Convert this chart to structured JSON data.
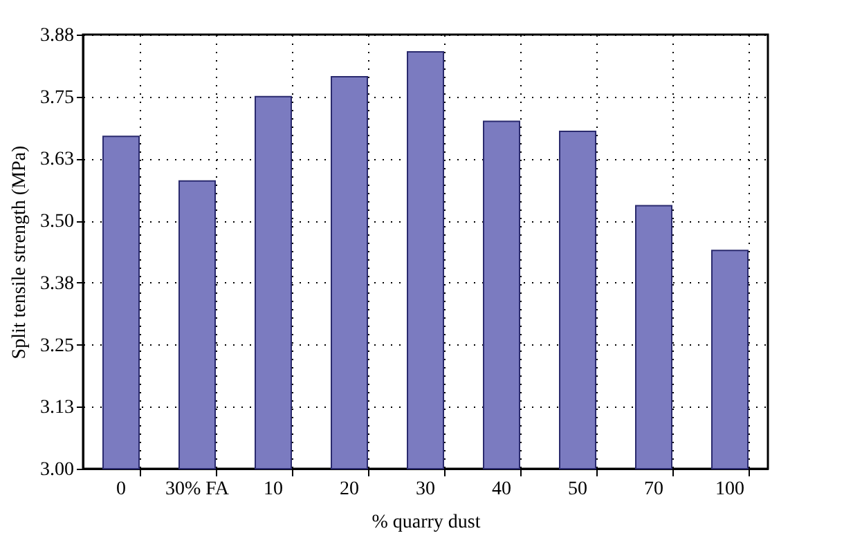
{
  "chart_data": {
    "type": "bar",
    "xlabel": "% quarry dust",
    "ylabel": "Split tensile strength (MPa)",
    "categories": [
      "0",
      "30% FA",
      "10",
      "20",
      "30",
      "40",
      "50",
      "70",
      "100"
    ],
    "values": [
      3.67,
      3.58,
      3.75,
      3.79,
      3.84,
      3.7,
      3.68,
      3.53,
      3.44
    ],
    "color": "#7b7bc0",
    "ylim": [
      3.0,
      3.875
    ],
    "yticks": [
      {
        "value": 3.0,
        "label": "3.00"
      },
      {
        "value": 3.125,
        "label": "3.13"
      },
      {
        "value": 3.25,
        "label": "3.25"
      },
      {
        "value": 3.375,
        "label": "3.38"
      },
      {
        "value": 3.5,
        "label": "3.50"
      },
      {
        "value": 3.625,
        "label": "3.63"
      },
      {
        "value": 3.75,
        "label": "3.75"
      },
      {
        "value": 3.875,
        "label": "3.88"
      }
    ],
    "grid": true
  }
}
